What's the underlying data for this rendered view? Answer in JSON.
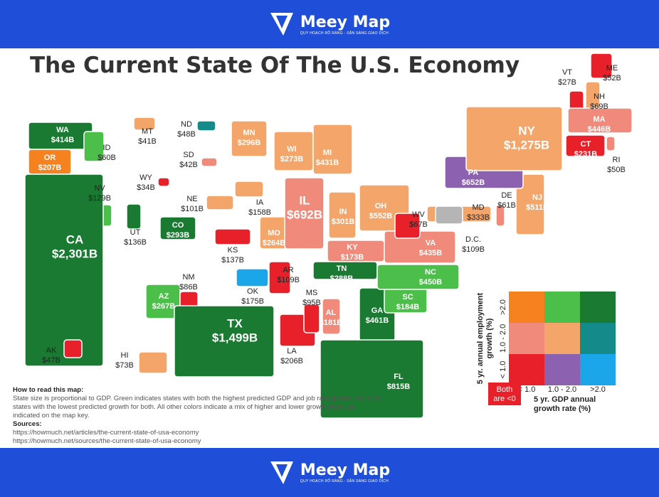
{
  "header": {
    "brand": "Meey Map",
    "tagline": "QUY HOẠCH RÕ RÀNG - SẴN SÀNG GIAO DỊCH"
  },
  "title": "The Current State Of The U.S. Economy",
  "states": [
    {
      "name": "WA",
      "gdp": "$414B",
      "color": "#1a7a32"
    },
    {
      "name": "OR",
      "gdp": "$207B",
      "color": "#f5821f"
    },
    {
      "name": "ID",
      "gdp": "$60B",
      "color": "#4cbf4a"
    },
    {
      "name": "MT",
      "gdp": "$41B",
      "color": "#f4a66a"
    },
    {
      "name": "ND",
      "gdp": "$48B",
      "color": "#148a8a"
    },
    {
      "name": "SD",
      "gdp": "$42B",
      "color": "#f08a7a"
    },
    {
      "name": "WY",
      "gdp": "$34B",
      "color": "#e8202a"
    },
    {
      "name": "NV",
      "gdp": "$129B",
      "color": "#4cbf4a"
    },
    {
      "name": "UT",
      "gdp": "$136B",
      "color": "#1a7a32"
    },
    {
      "name": "CO",
      "gdp": "$293B",
      "color": "#1a7a32"
    },
    {
      "name": "NE",
      "gdp": "$101B",
      "color": "#f4a66a"
    },
    {
      "name": "CA",
      "gdp": "$2,301B",
      "color": "#1a7a32"
    },
    {
      "name": "AZ",
      "gdp": "$267B",
      "color": "#4cbf4a"
    },
    {
      "name": "NM",
      "gdp": "$86B",
      "color": "#e8202a"
    },
    {
      "name": "KS",
      "gdp": "$137B",
      "color": "#e8202a"
    },
    {
      "name": "OK",
      "gdp": "$175B",
      "color": "#1aa6e8"
    },
    {
      "name": "TX",
      "gdp": "$1,499B",
      "color": "#1a7a32"
    },
    {
      "name": "MN",
      "gdp": "$296B",
      "color": "#f4a66a"
    },
    {
      "name": "IA",
      "gdp": "$158B",
      "color": "#f4a66a"
    },
    {
      "name": "MO",
      "gdp": "$264B",
      "color": "#f4a66a"
    },
    {
      "name": "AR",
      "gdp": "$109B",
      "color": "#e8202a"
    },
    {
      "name": "LA",
      "gdp": "$206B",
      "color": "#e8202a"
    },
    {
      "name": "MS",
      "gdp": "$95B",
      "color": "#e8202a"
    },
    {
      "name": "AL",
      "gdp": "$181B",
      "color": "#f08a7a"
    },
    {
      "name": "WI",
      "gdp": "$273B",
      "color": "#f4a66a"
    },
    {
      "name": "IL",
      "gdp": "$692B",
      "color": "#f08a7a"
    },
    {
      "name": "MI",
      "gdp": "$431B",
      "color": "#f4a66a"
    },
    {
      "name": "IN",
      "gdp": "$301B",
      "color": "#f4a66a"
    },
    {
      "name": "OH",
      "gdp": "$552B",
      "color": "#f4a66a"
    },
    {
      "name": "KY",
      "gdp": "$173B",
      "color": "#f08a7a"
    },
    {
      "name": "TN",
      "gdp": "$288B",
      "color": "#1a7a32"
    },
    {
      "name": "GA",
      "gdp": "$461B",
      "color": "#1a7a32"
    },
    {
      "name": "FL",
      "gdp": "$815B",
      "color": "#1a7a32"
    },
    {
      "name": "SC",
      "gdp": "$184B",
      "color": "#4cbf4a"
    },
    {
      "name": "NC",
      "gdp": "$450B",
      "color": "#4cbf4a"
    },
    {
      "name": "VA",
      "gdp": "$435B",
      "color": "#f08a7a"
    },
    {
      "name": "WV",
      "gdp": "$67B",
      "color": "#e8202a"
    },
    {
      "name": "MD",
      "gdp": "$333B",
      "color": "#f4a66a"
    },
    {
      "name": "DE",
      "gdp": "$61B",
      "color": "#f08a7a"
    },
    {
      "name": "D.C.",
      "gdp": "$109B",
      "color": "#b5b5b5"
    },
    {
      "name": "NJ",
      "gdp": "$511B",
      "color": "#f4a66a"
    },
    {
      "name": "PA",
      "gdp": "$652B",
      "color": "#8c62b0"
    },
    {
      "name": "NY",
      "gdp": "$1,275B",
      "color": "#f4a66a"
    },
    {
      "name": "VT",
      "gdp": "$27B",
      "color": "#e8202a"
    },
    {
      "name": "NH",
      "gdp": "$69B",
      "color": "#f4a66a"
    },
    {
      "name": "ME",
      "gdp": "$52B",
      "color": "#e8202a"
    },
    {
      "name": "MA",
      "gdp": "$446B",
      "color": "#f08a7a"
    },
    {
      "name": "CT",
      "gdp": "$231B",
      "color": "#e8202a"
    },
    {
      "name": "RI",
      "gdp": "$50B",
      "color": "#f08a7a"
    },
    {
      "name": "AK",
      "gdp": "$47B",
      "color": "#e8202a"
    },
    {
      "name": "HI",
      "gdp": "$73B",
      "color": "#f4a66a"
    }
  ],
  "legend": {
    "cells": [
      [
        "#f5821f",
        "#4cbf4a",
        "#1a7a32"
      ],
      [
        "#f08a7a",
        "#f4a66a",
        "#148a8a"
      ],
      [
        "#e8202a",
        "#8c62b0",
        "#1aa6e8"
      ]
    ],
    "rows": [
      ">2.0",
      "1.0 - 2.0",
      "< 1.0"
    ],
    "columns": [
      "< 1.0",
      "1.0 - 2.0",
      ">2.0"
    ],
    "y_title": [
      "5 yr. annual employment",
      "growth (%)"
    ],
    "x_title": [
      "5 yr. GDP annual",
      "growth rate (%)"
    ],
    "both_negative": [
      "Both",
      "are <0"
    ],
    "both_negative_color": "#e8202a"
  },
  "notes": {
    "heading": "How to read this map:",
    "body": "State size is proportional to GDP. Green indicates states with both the highest predicted GDP and job rate growth, red is for states with the lowest predicted growth for both. All other colors indicate a mix of higher and lower growth rates, as indicated on the map key.",
    "sources_heading": "Sources:",
    "sources": [
      "https://howmuch.net/articles/the-current-state-of-usa-economy",
      "https://howmuch.net/sources/the-current-state-of-usa-economy"
    ]
  },
  "footer": {
    "brand": "Meey Map",
    "tagline": "QUY HOẠCH RÕ RÀNG - SẴN SÀNG GIAO DỊCH"
  }
}
